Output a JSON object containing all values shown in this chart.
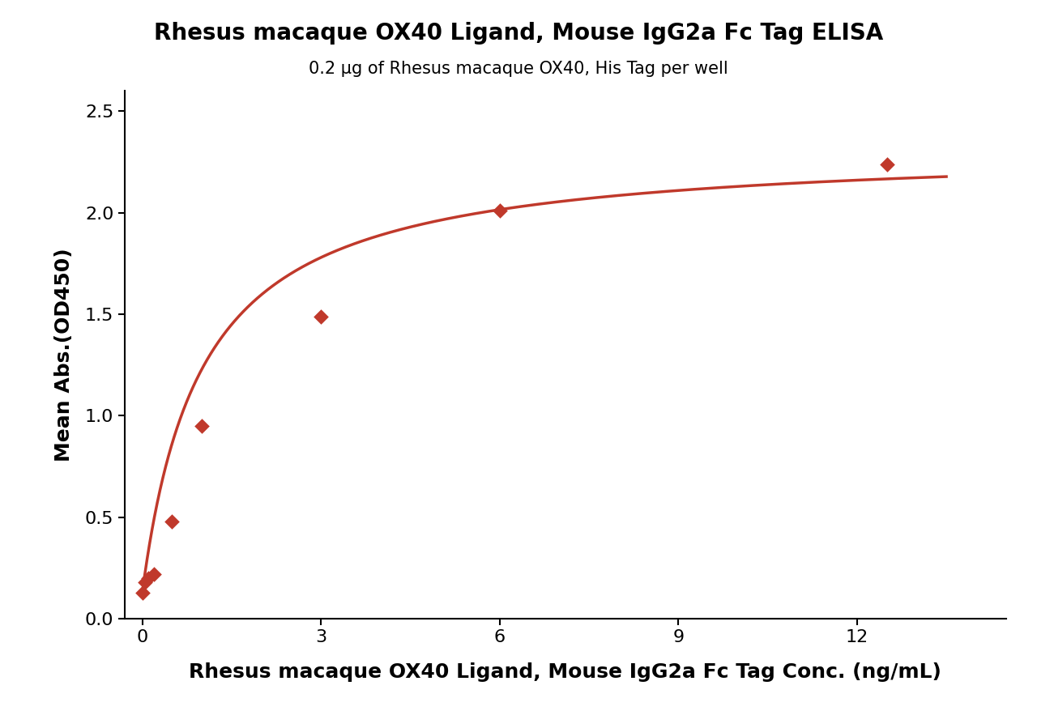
{
  "title": "Rhesus macaque OX40 Ligand, Mouse IgG2a Fc Tag ELISA",
  "subtitle": "0.2 μg of Rhesus macaque OX40, His Tag per well",
  "xlabel": "Rhesus macaque OX40 Ligand, Mouse IgG2a Fc Tag Conc. (ng/mL)",
  "ylabel": "Mean Abs.(OD450)",
  "data_x": [
    0.0,
    0.05,
    0.1,
    0.2,
    0.5,
    1.0,
    3.0,
    6.0,
    12.5
  ],
  "data_y": [
    0.13,
    0.18,
    0.2,
    0.22,
    0.48,
    0.95,
    1.49,
    2.01,
    2.24
  ],
  "xlim": [
    -0.3,
    14.5
  ],
  "ylim": [
    0.0,
    2.6
  ],
  "xticks": [
    0,
    3,
    6,
    9,
    12
  ],
  "yticks": [
    0.0,
    0.5,
    1.0,
    1.5,
    2.0,
    2.5
  ],
  "curve_color": "#c0392b",
  "marker_color": "#c0392b",
  "background_color": "#ffffff",
  "title_fontsize": 20,
  "subtitle_fontsize": 15,
  "axis_label_fontsize": 18,
  "tick_fontsize": 16
}
